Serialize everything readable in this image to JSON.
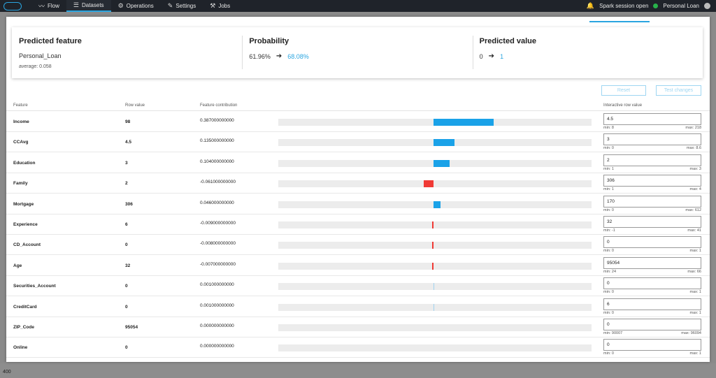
{
  "nav": {
    "items": [
      {
        "label": "Flow",
        "icon": "flow-icon"
      },
      {
        "label": "Datasets",
        "icon": "list-icon",
        "active": true
      },
      {
        "label": "Operations",
        "icon": "gear-icon"
      },
      {
        "label": "Settings",
        "icon": "wrench-icon"
      },
      {
        "label": "Jobs",
        "icon": "jobs-icon"
      }
    ],
    "session_status": "Spark session open",
    "project": "Personal Loan"
  },
  "summary": {
    "predicted_feature": {
      "title": "Predicted feature",
      "value": "Personal_Loan",
      "average": "average: 0.058"
    },
    "probability": {
      "title": "Probability",
      "old": "61.96%",
      "new": "68.08%"
    },
    "predicted_value": {
      "title": "Predicted value",
      "old": "0",
      "new": "1"
    }
  },
  "buttons": {
    "reset": "Reset",
    "test": "Test changes"
  },
  "table": {
    "headers": {
      "feature": "Feature",
      "row_value": "Row value",
      "contribution": "Feature contribution",
      "interactive": "Interactive row value"
    },
    "rows": [
      {
        "feature": "Income",
        "row_value": "98",
        "contribution": "0.387000000000",
        "contrib_num": 0.387,
        "input": "4.5",
        "min": "min: 8",
        "max": "max: 218"
      },
      {
        "feature": "CCAvg",
        "row_value": "4.5",
        "contribution": "0.135000000000",
        "contrib_num": 0.135,
        "input": "3",
        "min": "min: 0",
        "max": "max: 8.6"
      },
      {
        "feature": "Education",
        "row_value": "3",
        "contribution": "0.104000000000",
        "contrib_num": 0.104,
        "input": "2",
        "min": "min: 1",
        "max": "max: 3"
      },
      {
        "feature": "Family",
        "row_value": "2",
        "contribution": "-0.061000000000",
        "contrib_num": -0.061,
        "input": "306",
        "min": "min: 1",
        "max": "max: 4"
      },
      {
        "feature": "Mortgage",
        "row_value": "306",
        "contribution": "0.046000000000",
        "contrib_num": 0.046,
        "input": "170",
        "min": "min: 0",
        "max": "max: 612"
      },
      {
        "feature": "Experience",
        "row_value": "6",
        "contribution": "-0.009000000000",
        "contrib_num": -0.009,
        "input": "32",
        "min": "min: -1",
        "max": "max: 41"
      },
      {
        "feature": "CD_Account",
        "row_value": "0",
        "contribution": "-0.008000000000",
        "contrib_num": -0.008,
        "input": "0",
        "min": "min: 0",
        "max": "max: 1"
      },
      {
        "feature": "Age",
        "row_value": "32",
        "contribution": "-0.007000000000",
        "contrib_num": -0.007,
        "input": "95054",
        "min": "min: 24",
        "max": "max: 66"
      },
      {
        "feature": "Securities_Account",
        "row_value": "0",
        "contribution": "0.001000000000",
        "contrib_num": 0.001,
        "input": "0",
        "min": "min: 0",
        "max": "max: 1"
      },
      {
        "feature": "CreditCard",
        "row_value": "0",
        "contribution": "0.001000000000",
        "contrib_num": 0.001,
        "input": "6",
        "min": "min: 0",
        "max": "max: 1"
      },
      {
        "feature": "ZIP_Code",
        "row_value": "95054",
        "contribution": "0.000000000000",
        "contrib_num": 0.0,
        "input": "0",
        "min": "min: 90007",
        "max": "max: 96094"
      },
      {
        "feature": "Online",
        "row_value": "0",
        "contribution": "0.000000000000",
        "contrib_num": 0.0,
        "input": "0",
        "min": "min: 0",
        "max": "max: 1"
      }
    ]
  },
  "footer": {
    "label": "400"
  },
  "colors": {
    "accent": "#2aa5e0",
    "positive": "#1aa2e8",
    "negative": "#f03a35"
  }
}
